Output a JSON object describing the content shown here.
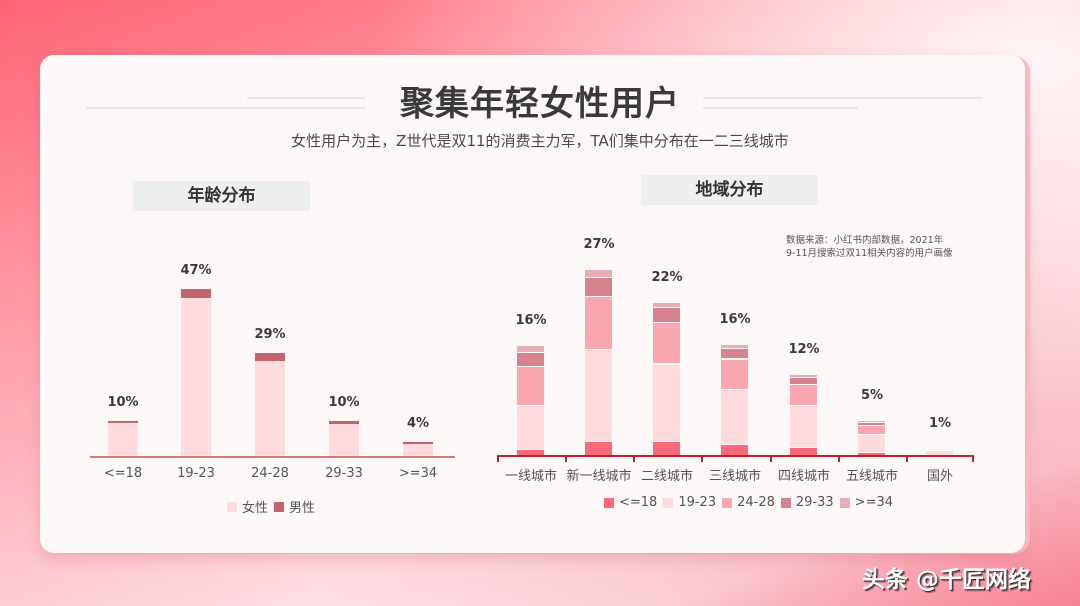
{
  "header": {
    "title": "聚集年轻女性用户",
    "subtitle": "女性用户为主，Z世代是双11的消费主力军，TA们集中分布在一二三线城市"
  },
  "age_section": {
    "title": "年龄分布"
  },
  "region_section": {
    "title": "地域分布",
    "source_line1": "数据来源：小红书内部数据，2021年",
    "source_line2": "9-11月搜索过双11相关内容的用户画像"
  },
  "colors": {
    "female": "#fddbdf",
    "male": "#c4646f",
    "age_le18": "#fb6a7b",
    "age_19_23": "#fddbdf",
    "age_24_28": "#fba7b2",
    "age_29_33": "#d6838f",
    "age_ge34": "#e6aeb6",
    "axis_left": "#d9737d",
    "axis_right": "#c4202c"
  },
  "chart_data": [
    {
      "type": "bar",
      "stacked": true,
      "title": "年龄分布",
      "categories": [
        "<=18",
        "19-23",
        "24-28",
        "29-33",
        ">=34"
      ],
      "totals": [
        "10%",
        "47%",
        "29%",
        "10%",
        "4%"
      ],
      "series": [
        {
          "name": "女性",
          "values": [
            9.4,
            44.4,
            26.8,
            9.2,
            3.5
          ]
        },
        {
          "name": "男性",
          "values": [
            0.6,
            2.6,
            2.2,
            0.8,
            0.5
          ]
        }
      ],
      "legend": [
        "女性",
        "男性"
      ],
      "legend_position": "bottom",
      "grid": false
    },
    {
      "type": "bar",
      "stacked": true,
      "title": "地域分布",
      "categories": [
        "一线城市",
        "新一线城市",
        "二线城市",
        "三线城市",
        "四线城市",
        "五线城市",
        "国外"
      ],
      "totals": [
        "16%",
        "27%",
        "22%",
        "16%",
        "12%",
        "5%",
        "1%"
      ],
      "series": [
        {
          "name": "<=18",
          "values": [
            0.8,
            1.9,
            1.9,
            1.5,
            1.1,
            0.4,
            0.0
          ]
        },
        {
          "name": "19-23",
          "values": [
            6.2,
            12.9,
            10.9,
            7.8,
            5.9,
            2.5,
            0.7
          ]
        },
        {
          "name": "24-28",
          "values": [
            5.4,
            7.5,
            5.8,
            4.2,
            3.0,
            1.3,
            0.2
          ]
        },
        {
          "name": "29-33",
          "values": [
            2.0,
            2.6,
            2.1,
            1.5,
            0.9,
            0.4,
            0.1
          ]
        },
        {
          "name": ">=34",
          "values": [
            1.0,
            1.1,
            0.7,
            0.5,
            0.4,
            0.3,
            0.0
          ]
        }
      ],
      "legend": [
        "<=18",
        "19-23",
        "24-28",
        "29-33",
        ">=34"
      ],
      "legend_position": "bottom",
      "grid": false
    }
  ],
  "watermark": "头条 @千匠网络"
}
